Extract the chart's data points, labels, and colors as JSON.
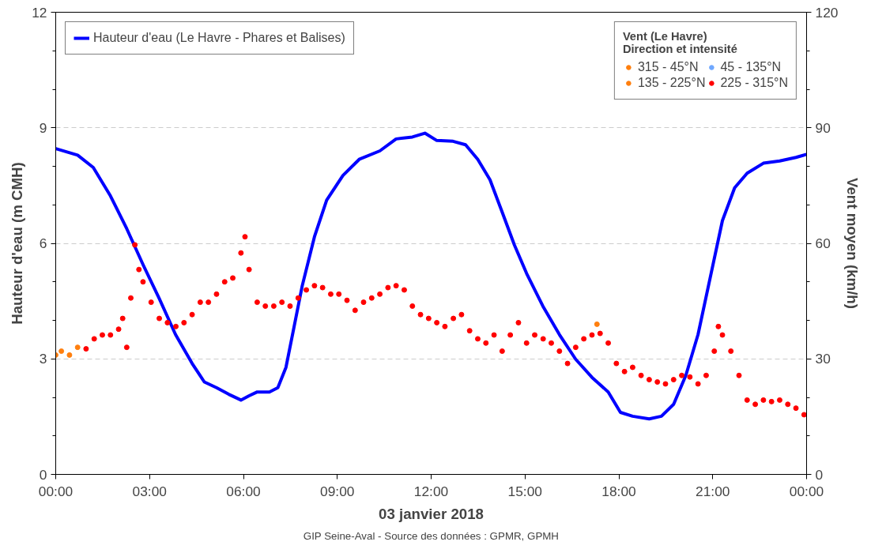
{
  "chart_data": {
    "type": "line",
    "xlabel": "03 janvier 2018",
    "ylabel": "Hauteur d'eau (m CMH)",
    "y2label": "Vent moyen (km/h)",
    "legend_title": "Vent (Le Havre)\nDirection et intensité",
    "annotations": [
      "GIP Seine-Aval - Source des données : GPMR, GPMH"
    ],
    "xlim": [
      0,
      24
    ],
    "xticks": [
      {
        "value": 0,
        "label": "00:00"
      },
      {
        "value": 3,
        "label": "03:00"
      },
      {
        "value": 6,
        "label": "06:00"
      },
      {
        "value": 9,
        "label": "09:00"
      },
      {
        "value": 12,
        "label": "12:00"
      },
      {
        "value": 15,
        "label": "15:00"
      },
      {
        "value": 18,
        "label": "18:00"
      },
      {
        "value": 21,
        "label": "21:00"
      },
      {
        "value": 24,
        "label": "00:00"
      }
    ],
    "ylim": [
      0,
      12
    ],
    "yticks": [
      0,
      {
        "value": 1,
        "label": null
      },
      {
        "value": 2,
        "label": null
      },
      3,
      {
        "value": 4,
        "label": null
      },
      {
        "value": 5,
        "label": null
      },
      6,
      {
        "value": 7,
        "label": null
      },
      {
        "value": 8,
        "label": null
      },
      9,
      {
        "value": 10,
        "label": null
      },
      {
        "value": 11,
        "label": null
      },
      12
    ],
    "y2lim": [
      0,
      120
    ],
    "y2ticks": [
      0,
      {
        "value": 10,
        "label": null
      },
      {
        "value": 20,
        "label": null
      },
      30,
      {
        "value": 40,
        "label": null
      },
      {
        "value": 50,
        "label": null
      },
      60,
      {
        "value": 70,
        "label": null
      },
      {
        "value": 80,
        "label": null
      },
      90,
      {
        "value": 100,
        "label": null
      },
      {
        "value": 110,
        "label": null
      },
      120
    ],
    "grid": "y",
    "marker": "circle",
    "legend": "top",
    "series": [
      {
        "name": "Hauteur d'eau (Le Havre - Phares et Balises)",
        "marker": "none",
        "color": "#0000ff",
        "x": [
          0,
          0.7,
          1.2,
          1.75,
          2.27,
          2.8,
          3.3,
          3.83,
          4.36,
          4.75,
          5.14,
          5.53,
          5.92,
          6.18,
          6.44,
          6.83,
          7.1,
          7.36,
          7.62,
          7.88,
          8.27,
          8.66,
          9.18,
          9.7,
          10.36,
          10.88,
          11.4,
          11.8,
          12.18,
          12.7,
          13.1,
          13.49,
          13.88,
          14.27,
          14.66,
          15.05,
          15.57,
          16.1,
          16.62,
          17.14,
          17.66,
          18.05,
          18.44,
          18.97,
          19.36,
          19.75,
          20.14,
          20.53,
          20.92,
          21.31,
          21.7,
          22.1,
          22.62,
          23.14,
          23.66,
          24
        ],
        "values": [
          8.46,
          8.29,
          7.97,
          7.23,
          6.38,
          5.43,
          4.58,
          3.63,
          2.88,
          2.4,
          2.25,
          2.08,
          1.93,
          2.04,
          2.14,
          2.14,
          2.25,
          2.78,
          3.84,
          4.9,
          6.17,
          7.12,
          7.76,
          8.18,
          8.4,
          8.71,
          8.76,
          8.86,
          8.67,
          8.65,
          8.56,
          8.18,
          7.65,
          6.81,
          5.96,
          5.22,
          4.37,
          3.63,
          2.99,
          2.52,
          2.14,
          1.61,
          1.51,
          1.44,
          1.51,
          1.82,
          2.57,
          3.63,
          5.11,
          6.59,
          7.44,
          7.82,
          8.08,
          8.14,
          8.23,
          8.31
        ]
      },
      {
        "name": "315 - 45°N",
        "type": "scatter",
        "axis": "y2",
        "color": "#ff7f0e",
        "x": [
          0,
          0.18,
          0.44,
          0.7
        ],
        "values": [
          31,
          32,
          31,
          33
        ]
      },
      {
        "name": "135 - 225°N",
        "type": "scatter",
        "axis": "y2",
        "color": "#ff7f0e",
        "x": [
          17.3
        ],
        "values": [
          39
        ]
      },
      {
        "name": "45 - 135°N",
        "type": "scatter",
        "axis": "y2",
        "color": "#6fa8ff"
      },
      {
        "name": "225 - 315°N",
        "type": "scatter",
        "axis": "y2",
        "color": "#ff0000",
        "x": [
          0.97,
          1.23,
          1.49,
          1.75,
          2.01,
          2.14,
          2.27,
          2.4,
          2.53,
          2.66,
          2.79,
          3.05,
          3.31,
          3.57,
          3.84,
          4.1,
          4.36,
          4.62,
          4.88,
          5.14,
          5.4,
          5.66,
          5.92,
          6.05,
          6.18,
          6.44,
          6.7,
          6.97,
          7.23,
          7.49,
          7.75,
          8.01,
          8.27,
          8.53,
          8.79,
          9.05,
          9.31,
          9.57,
          9.84,
          10.1,
          10.36,
          10.62,
          10.88,
          11.14,
          11.4,
          11.66,
          11.92,
          12.18,
          12.44,
          12.71,
          12.97,
          13.23,
          13.49,
          13.75,
          14.01,
          14.27,
          14.53,
          14.79,
          15.05,
          15.31,
          15.58,
          15.84,
          16.1,
          16.36,
          16.62,
          16.88,
          17.14,
          17.4,
          17.66,
          17.92,
          18.18,
          18.44,
          18.71,
          18.97,
          19.23,
          19.49,
          19.75,
          20.01,
          20.27,
          20.53,
          20.79,
          21.05,
          21.18,
          21.31,
          21.58,
          21.84,
          22.1,
          22.36,
          22.62,
          22.88,
          23.14,
          23.4,
          23.66,
          23.92
        ],
        "values": [
          32.6,
          35.2,
          36.2,
          36.2,
          37.7,
          40.5,
          33,
          45.8,
          59.6,
          53.2,
          50,
          44.7,
          40.5,
          39.4,
          38.4,
          39.4,
          41.5,
          44.7,
          44.7,
          46.8,
          50,
          51,
          57.5,
          61.7,
          53.2,
          44.7,
          43.7,
          43.7,
          44.7,
          43.7,
          45.8,
          47.9,
          49,
          48.5,
          46.8,
          46.8,
          45.2,
          42.6,
          44.7,
          45.8,
          46.8,
          48.5,
          49,
          47.9,
          43.7,
          41.5,
          40.5,
          39.4,
          38.4,
          40.5,
          41.5,
          37.3,
          35.2,
          34.1,
          36.2,
          32,
          36.2,
          39.4,
          34.1,
          36.2,
          35.2,
          34.1,
          32,
          28.8,
          33,
          35.2,
          36.2,
          36.6,
          34.1,
          28.8,
          26.7,
          27.8,
          25.7,
          24.6,
          24,
          23.5,
          24.6,
          25.7,
          25.3,
          23.5,
          25.7,
          32,
          38.4,
          36.2,
          32,
          25.7,
          19.3,
          18.2,
          19.3,
          18.9,
          19.3,
          18.2,
          17.2,
          15.5
        ]
      }
    ]
  }
}
